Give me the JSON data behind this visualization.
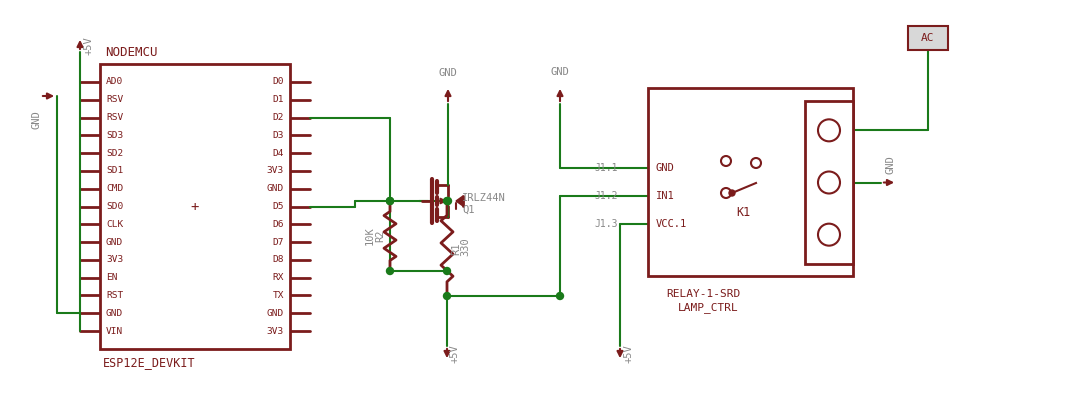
{
  "bg_color": "#ffffff",
  "dark_red": "#7B1C1C",
  "green": "#1a7a1a",
  "gray_text": "#888888",
  "fig_width": 10.66,
  "fig_height": 4.04,
  "dpi": 100,
  "nodemcu_pins_left": [
    "AD0",
    "RSV",
    "RSV",
    "SD3",
    "SD2",
    "SD1",
    "CMD",
    "SD0",
    "CLK",
    "GND",
    "3V3",
    "EN",
    "RST",
    "GND",
    "VIN"
  ],
  "nodemcu_pins_right": [
    "D0",
    "D1",
    "D2",
    "D3",
    "D4",
    "3V3",
    "GND",
    "D5",
    "D6",
    "D7",
    "D8",
    "RX",
    "TX",
    "GND",
    "3V3"
  ]
}
